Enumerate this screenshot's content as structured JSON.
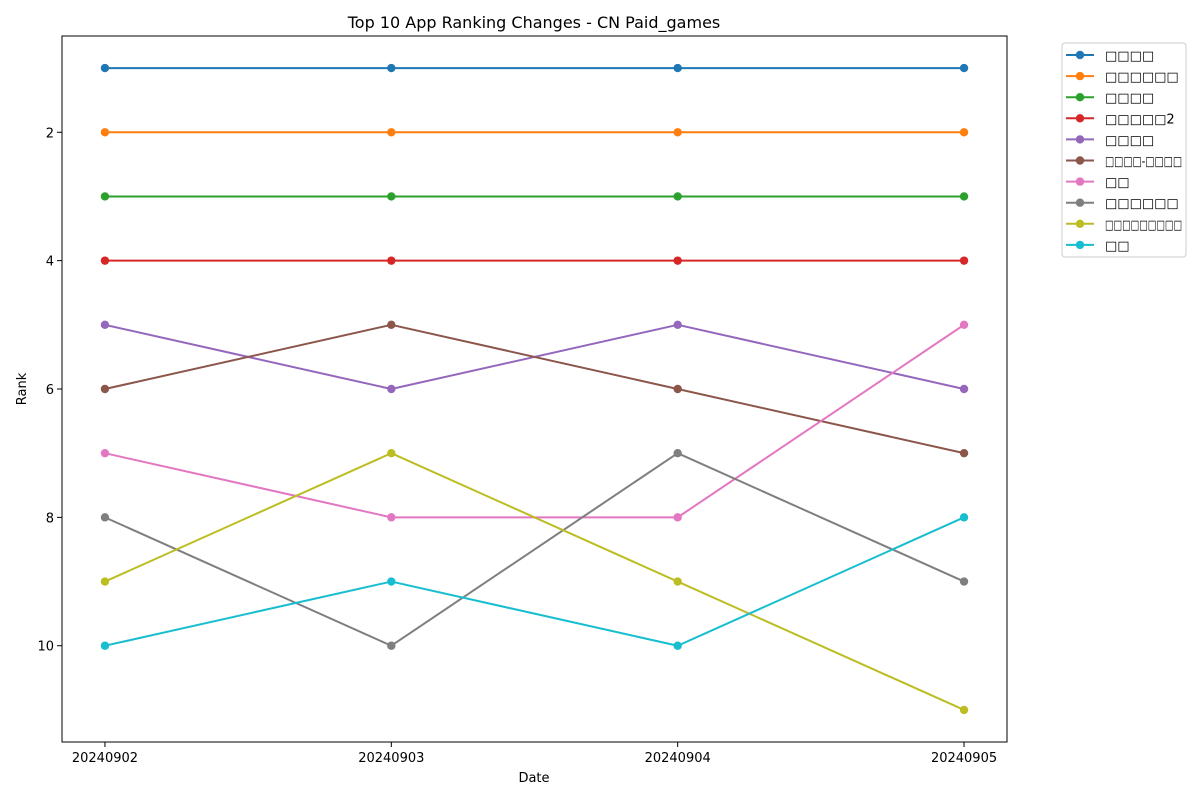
{
  "chart_data": {
    "type": "line",
    "title": "Top 10 App Ranking Changes - CN Paid_games",
    "xlabel": "Date",
    "ylabel": "Rank",
    "x": [
      "20240902",
      "20240903",
      "20240904",
      "20240905"
    ],
    "yticks": [
      2,
      4,
      6,
      8,
      10
    ],
    "ylim": [
      11.5,
      0.5
    ],
    "y_inverted": true,
    "grid": false,
    "markers": "circle",
    "legend_position": "outside-upper-right",
    "series": [
      {
        "name": "□□□□",
        "color": "#1f77b4",
        "values": [
          1,
          1,
          1,
          1
        ]
      },
      {
        "name": "□□□□□□",
        "color": "#ff7f0e",
        "values": [
          2,
          2,
          2,
          2
        ]
      },
      {
        "name": "□□□□",
        "color": "#2ca02c",
        "values": [
          3,
          3,
          3,
          3
        ]
      },
      {
        "name": "□□□□□2",
        "color": "#d62728",
        "values": [
          4,
          4,
          4,
          4
        ]
      },
      {
        "name": "□□□□",
        "color": "#9467bd",
        "values": [
          5,
          6,
          5,
          6
        ]
      },
      {
        "name": "□□□□-□□□□",
        "color": "#8c564b",
        "values": [
          6,
          5,
          6,
          7
        ]
      },
      {
        "name": "□□",
        "color": "#e377c2",
        "values": [
          7,
          8,
          8,
          5
        ]
      },
      {
        "name": "□□□□□□",
        "color": "#7f7f7f",
        "values": [
          8,
          10,
          7,
          9
        ]
      },
      {
        "name": "□□□□□□□□□",
        "color": "#bcbd22",
        "values": [
          9,
          7,
          9,
          11
        ]
      },
      {
        "name": "□□",
        "color": "#17becf",
        "values": [
          10,
          9,
          10,
          8
        ]
      }
    ]
  }
}
